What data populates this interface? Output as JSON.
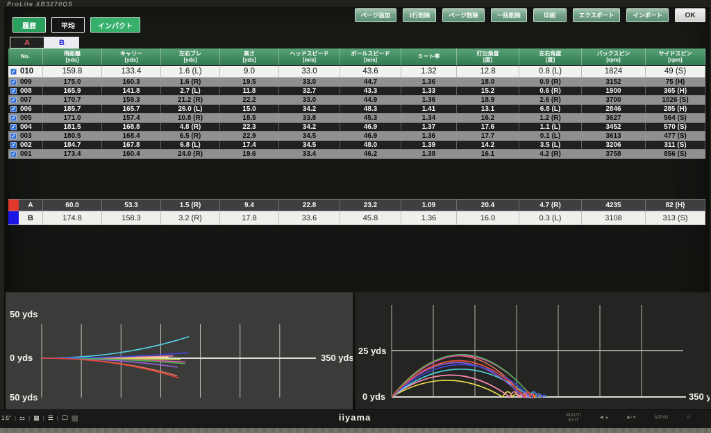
{
  "monitor": {
    "model": "ProLite XB3270QS",
    "brand": "iiyama",
    "size_sticker": "1.5\"",
    "bezel_icons": [
      "energy-label-icon",
      "qr-code-icon",
      "spec-lines-icon",
      "display-icon",
      "qr-sticker-icon"
    ],
    "bezel_buttons": [
      "INPUT/\nEXIT",
      "◀/▲",
      "▶/▼",
      "MENU",
      "⏻"
    ]
  },
  "toolbar": {
    "left_buttons": [
      {
        "label": "履歴"
      },
      {
        "label": "平均"
      },
      {
        "label": "インパクト"
      }
    ],
    "right_buttons": [
      {
        "label": "ページ追加"
      },
      {
        "label": "1行削除"
      },
      {
        "label": "ページ削除"
      },
      {
        "label": "一括削除"
      },
      {
        "label": "印刷"
      },
      {
        "label": "エクスポート"
      },
      {
        "label": "インポート"
      }
    ],
    "ok_label": "OK"
  },
  "tabs": [
    {
      "label": "A",
      "active": false
    },
    {
      "label": "B",
      "active": true
    }
  ],
  "table": {
    "headers": [
      {
        "title": "No.",
        "unit": ""
      },
      {
        "title": "飛距離",
        "unit": "[yds]"
      },
      {
        "title": "キャリー",
        "unit": "[yds]"
      },
      {
        "title": "左右ブレ",
        "unit": "[yds]"
      },
      {
        "title": "高さ",
        "unit": "[yds]"
      },
      {
        "title": "ヘッドスピード",
        "unit": "[m/s]"
      },
      {
        "title": "ボールスピード",
        "unit": "[m/s]"
      },
      {
        "title": "ミート率",
        "unit": ""
      },
      {
        "title": "打出角度",
        "unit": "[度]"
      },
      {
        "title": "左右角度",
        "unit": "[度]"
      },
      {
        "title": "バックスピン",
        "unit": "[rpm]"
      },
      {
        "title": "サイドスピン",
        "unit": "[rpm]"
      }
    ],
    "rows": [
      {
        "no": "010",
        "checked": true,
        "values": [
          "159.8",
          "133.4",
          "1.6  (L)",
          "9.0",
          "33.0",
          "43.6",
          "1.32",
          "12.8",
          "0.8  (L)",
          "1824",
          "49  (S)"
        ]
      },
      {
        "no": "009",
        "checked": true,
        "values": [
          "175.0",
          "160.3",
          "1.6  (R)",
          "19.5",
          "33.0",
          "44.7",
          "1.36",
          "18.0",
          "0.9  (R)",
          "3152",
          "75  (H)"
        ]
      },
      {
        "no": "008",
        "checked": true,
        "values": [
          "165.9",
          "141.8",
          "2.7  (L)",
          "11.8",
          "32.7",
          "43.3",
          "1.33",
          "15.2",
          "0.6  (R)",
          "1900",
          "365  (H)"
        ]
      },
      {
        "no": "007",
        "checked": true,
        "values": [
          "170.7",
          "159.3",
          "21.2  (R)",
          "22.2",
          "33.0",
          "44.9",
          "1.36",
          "18.9",
          "2.6  (R)",
          "3700",
          "1026  (S)"
        ]
      },
      {
        "no": "006",
        "checked": true,
        "values": [
          "185.7",
          "165.7",
          "26.0  (L)",
          "15.0",
          "34.2",
          "48.3",
          "1.41",
          "13.1",
          "6.8  (L)",
          "2846",
          "285  (H)"
        ]
      },
      {
        "no": "005",
        "checked": true,
        "values": [
          "171.0",
          "157.4",
          "10.8  (R)",
          "18.5",
          "33.8",
          "45.3",
          "1.34",
          "16.2",
          "1.2  (R)",
          "3627",
          "564  (S)"
        ]
      },
      {
        "no": "004",
        "checked": true,
        "values": [
          "181.5",
          "168.8",
          "4.8  (R)",
          "22.3",
          "34.2",
          "46.9",
          "1.37",
          "17.6",
          "1.1  (L)",
          "3452",
          "570  (S)"
        ]
      },
      {
        "no": "003",
        "checked": true,
        "values": [
          "180.5",
          "168.4",
          "6.5  (R)",
          "22.9",
          "34.5",
          "46.9",
          "1.36",
          "17.7",
          "0.1  (L)",
          "3613",
          "477  (S)"
        ]
      },
      {
        "no": "002",
        "checked": true,
        "values": [
          "184.7",
          "167.8",
          "6.8  (L)",
          "17.4",
          "34.5",
          "48.0",
          "1.39",
          "14.2",
          "3.5  (L)",
          "3206",
          "311  (S)"
        ]
      },
      {
        "no": "001",
        "checked": true,
        "values": [
          "173.4",
          "160.4",
          "24.0  (R)",
          "19.6",
          "33.4",
          "46.2",
          "1.38",
          "16.1",
          "4.2  (R)",
          "3758",
          "856  (S)"
        ]
      }
    ]
  },
  "summary": {
    "rows": [
      {
        "label": "A",
        "swatch_color": "#e0392c",
        "values": [
          "60.0",
          "53.3",
          "1.5  (R)",
          "9.4",
          "22.8",
          "23.2",
          "1.09",
          "20.4",
          "4.7  (R)",
          "4235",
          "82  (H)"
        ]
      },
      {
        "label": "B",
        "swatch_color": "#1d14e6",
        "values": [
          "174.8",
          "158.3",
          "3.2  (R)",
          "17.8",
          "33.6",
          "45.8",
          "1.36",
          "16.0",
          "0.3  (L)",
          "3108",
          "313  (S)"
        ]
      }
    ]
  },
  "chart_data": [
    {
      "type": "line",
      "title": "top-view shot dispersion",
      "xlabel_right": "350 yds",
      "ylabels": [
        "50 yds",
        "0 yds",
        "50 yds"
      ],
      "x_range_yds": [
        0,
        350
      ],
      "y_range_yds": [
        -50,
        50
      ],
      "grid_spacing_yds": 50,
      "grid": "vertical-lines",
      "series": [
        {
          "name": "010",
          "color": "#f0e14a",
          "total_yds": 159.8,
          "lateral_yds": 1.6
        },
        {
          "name": "009",
          "color": "#c8d843",
          "total_yds": 175.0,
          "lateral_yds": -1.6
        },
        {
          "name": "008",
          "color": "#ff8bb0",
          "total_yds": 165.9,
          "lateral_yds": 2.7
        },
        {
          "name": "007",
          "color": "#e87a64",
          "total_yds": 170.7,
          "lateral_yds": -21.2
        },
        {
          "name": "006",
          "color": "#52d2e6",
          "total_yds": 185.7,
          "lateral_yds": 26.0
        },
        {
          "name": "005",
          "color": "#9a5ce0",
          "total_yds": 171.0,
          "lateral_yds": -10.8
        },
        {
          "name": "004",
          "color": "#e84ab4",
          "total_yds": 181.5,
          "lateral_yds": -4.8
        },
        {
          "name": "003",
          "color": "#46b44e",
          "total_yds": 180.5,
          "lateral_yds": -6.5
        },
        {
          "name": "002",
          "color": "#3c46d8",
          "total_yds": 184.7,
          "lateral_yds": 6.8
        },
        {
          "name": "001",
          "color": "#e8433a",
          "total_yds": 173.4,
          "lateral_yds": -24.0
        }
      ]
    },
    {
      "type": "line",
      "title": "side-view trajectory height",
      "xlabel_right": "350 yds",
      "ylabels": [
        "25 yds",
        "0 yds"
      ],
      "x_range_yds": [
        0,
        350
      ],
      "y_gridline_yds": 25,
      "grid_spacing_yds": 50,
      "grid": "vertical-lines",
      "series": [
        {
          "name": "010",
          "color": "#f0e14a",
          "carry_yds": 133.4,
          "apex_yds": 9.0,
          "total_yds": 159.8
        },
        {
          "name": "009",
          "color": "#c8d843",
          "carry_yds": 160.3,
          "apex_yds": 19.5,
          "total_yds": 175.0
        },
        {
          "name": "008",
          "color": "#ff8bb0",
          "carry_yds": 141.8,
          "apex_yds": 11.8,
          "total_yds": 165.9
        },
        {
          "name": "007",
          "color": "#e87a64",
          "carry_yds": 159.3,
          "apex_yds": 22.2,
          "total_yds": 170.7
        },
        {
          "name": "006",
          "color": "#52d2e6",
          "carry_yds": 165.7,
          "apex_yds": 15.0,
          "total_yds": 185.7
        },
        {
          "name": "005",
          "color": "#9a5ce0",
          "carry_yds": 157.4,
          "apex_yds": 18.5,
          "total_yds": 171.0
        },
        {
          "name": "004",
          "color": "#e84ab4",
          "carry_yds": 168.8,
          "apex_yds": 22.3,
          "total_yds": 181.5
        },
        {
          "name": "003",
          "color": "#46b44e",
          "carry_yds": 168.4,
          "apex_yds": 22.9,
          "total_yds": 180.5
        },
        {
          "name": "002",
          "color": "#3c46d8",
          "carry_yds": 167.8,
          "apex_yds": 17.4,
          "total_yds": 184.7
        },
        {
          "name": "001",
          "color": "#e8433a",
          "carry_yds": 160.4,
          "apex_yds": 19.6,
          "total_yds": 173.4
        }
      ]
    }
  ]
}
